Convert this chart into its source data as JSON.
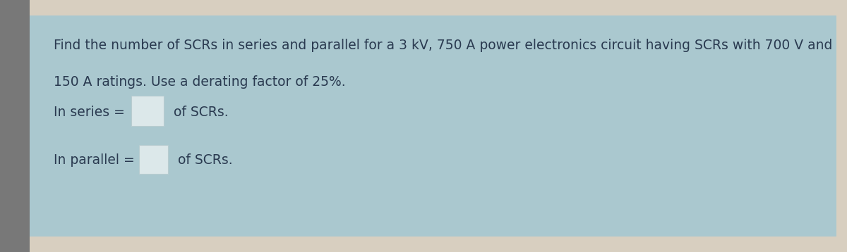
{
  "top_strip_color": "#d8cfc0",
  "left_strip_color": "#6a6a6a",
  "main_bg": "#aac8cf",
  "text_color": "#2a3a50",
  "title_line1": "Find the number of SCRs in series and parallel for a 3 kV, 750 A power electronics circuit having SCRs with 700 V and",
  "title_line2": "150 A ratings. Use a derating factor of 25%.",
  "series_label": "In series =",
  "parallel_label": "In parallel =",
  "series_suffix": "of SCRs.",
  "parallel_suffix": "of SCRs.",
  "box_fill": "#dce8ea",
  "box_edge": "#b8ccd0",
  "circle_color": "#cc1111",
  "font_size": 13.5,
  "figsize": [
    12.0,
    3.58
  ],
  "dpi": 100
}
